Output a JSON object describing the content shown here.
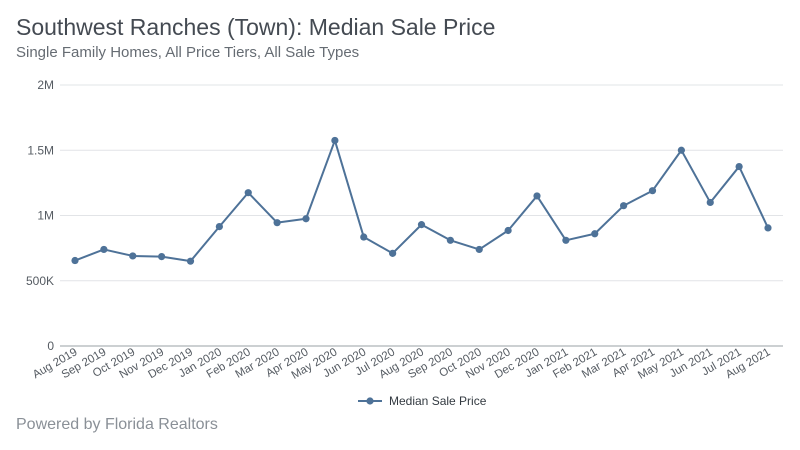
{
  "header": {
    "title": "Southwest Ranches (Town): Median Sale Price",
    "subtitle": "Single Family Homes, All Price Tiers, All Sale Types"
  },
  "footer": {
    "credit": "Powered by Florida Realtors"
  },
  "colors": {
    "series": "#4e7298",
    "grid": "#e2e4e7",
    "axis": "#9aa0a6"
  },
  "chart_data": {
    "type": "line",
    "title": "Southwest Ranches (Town): Median Sale Price",
    "xlabel": "",
    "ylabel": "",
    "ylim": [
      0,
      2000000
    ],
    "yticks": [
      0,
      500000,
      1000000,
      1500000,
      2000000
    ],
    "ytick_labels": [
      "0",
      "500K",
      "1M",
      "1.5M",
      "2M"
    ],
    "grid": true,
    "legend_position": "bottom-center",
    "categories": [
      "Aug 2019",
      "Sep 2019",
      "Oct 2019",
      "Nov 2019",
      "Dec 2019",
      "Jan 2020",
      "Feb 2020",
      "Mar 2020",
      "Apr 2020",
      "May 2020",
      "Jun 2020",
      "Jul 2020",
      "Aug 2020",
      "Sep 2020",
      "Oct 2020",
      "Nov 2020",
      "Dec 2020",
      "Jan 2021",
      "Feb 2021",
      "Mar 2021",
      "Apr 2021",
      "May 2021",
      "Jun 2021",
      "Jul 2021",
      "Aug 2021"
    ],
    "series": [
      {
        "name": "Median Sale Price",
        "values": [
          655000,
          740000,
          690000,
          685000,
          650000,
          915000,
          1175000,
          945000,
          975000,
          1575000,
          835000,
          710000,
          930000,
          810000,
          740000,
          885000,
          1150000,
          810000,
          860000,
          1075000,
          1190000,
          1500000,
          1100000,
          1375000,
          905000
        ]
      }
    ]
  }
}
